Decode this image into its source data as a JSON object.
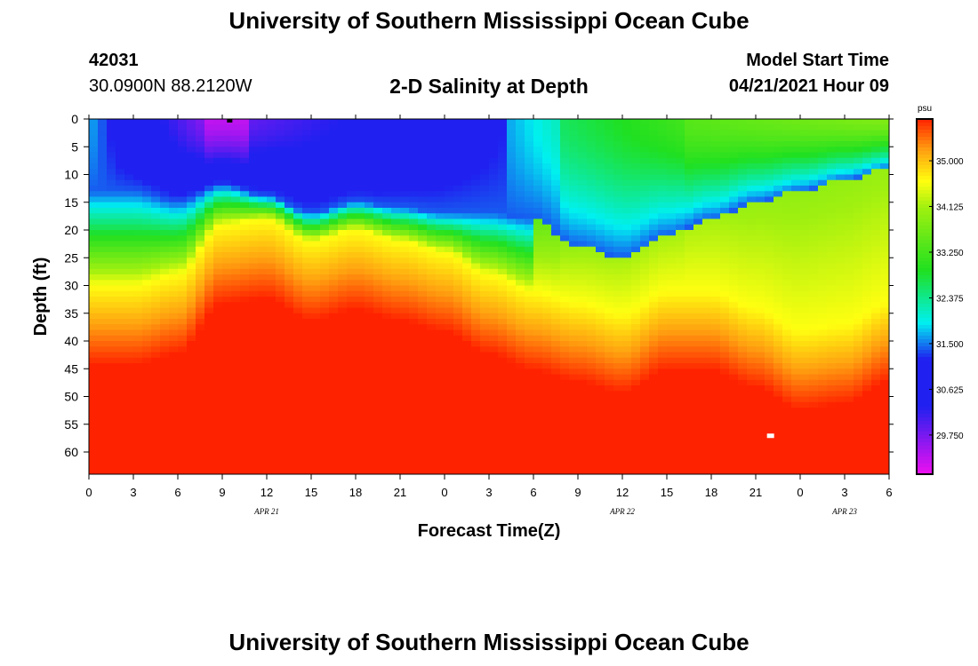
{
  "header": {
    "title": "University of Southern Mississippi Ocean Cube",
    "station_id": "42031",
    "station_coords": "30.0900N  88.2120W",
    "subtitle": "2-D Salinity at Depth",
    "model_label": "Model Start Time",
    "model_time": "04/21/2021 Hour 09"
  },
  "footer": {
    "title": "University of Southern Mississippi Ocean Cube"
  },
  "colors": {
    "low": "#ee10f0",
    "mid_blue": "#2020f0",
    "cyan": "#00f0f0",
    "green": "#20e020",
    "yellow": "#ffff10",
    "orange": "#ffa010",
    "red": "#ff2200",
    "marker_dark": "#000000",
    "marker_light": "#ffffff"
  },
  "chart_data": {
    "type": "heatmap",
    "title": "2-D Salinity at Depth",
    "xlabel": "Forecast Time(Z)",
    "ylabel": "Depth (ft)",
    "x_range_hours": [
      0,
      54
    ],
    "y_range_ft": [
      0,
      64
    ],
    "x_ticks": [
      {
        "hour": 0,
        "label": "0"
      },
      {
        "hour": 3,
        "label": "3"
      },
      {
        "hour": 6,
        "label": "6"
      },
      {
        "hour": 9,
        "label": "9"
      },
      {
        "hour": 12,
        "label": "12"
      },
      {
        "hour": 15,
        "label": "15"
      },
      {
        "hour": 18,
        "label": "18"
      },
      {
        "hour": 21,
        "label": "21"
      },
      {
        "hour": 24,
        "label": "0"
      },
      {
        "hour": 27,
        "label": "3"
      },
      {
        "hour": 30,
        "label": "6"
      },
      {
        "hour": 33,
        "label": "9"
      },
      {
        "hour": 36,
        "label": "12"
      },
      {
        "hour": 39,
        "label": "15"
      },
      {
        "hour": 42,
        "label": "18"
      },
      {
        "hour": 45,
        "label": "21"
      },
      {
        "hour": 48,
        "label": "0"
      },
      {
        "hour": 51,
        "label": "3"
      },
      {
        "hour": 54,
        "label": "6"
      }
    ],
    "date_labels": [
      {
        "hour": 12,
        "label": "APR 21"
      },
      {
        "hour": 36,
        "label": "APR 22"
      },
      {
        "hour": 51,
        "label": "APR 23"
      }
    ],
    "y_ticks": [
      0,
      5,
      10,
      15,
      20,
      25,
      30,
      35,
      40,
      45,
      50,
      55,
      60
    ],
    "colorbar": {
      "units": "psu",
      "range": [
        29.0,
        35.8
      ],
      "ticks": [
        "35.000",
        "34.125",
        "33.250",
        "32.375",
        "31.500",
        "30.625",
        "29.750"
      ],
      "tick_values": [
        35.0,
        34.125,
        33.25,
        32.375,
        31.5,
        30.625,
        29.75
      ]
    },
    "isohaline_30_9_depth_ft": [
      {
        "hour": 0,
        "depth": 13
      },
      {
        "hour": 3,
        "depth": 13
      },
      {
        "hour": 6,
        "depth": 15
      },
      {
        "hour": 9,
        "depth": 12
      },
      {
        "hour": 12,
        "depth": 14
      },
      {
        "hour": 15,
        "depth": 17
      },
      {
        "hour": 18,
        "depth": 15
      },
      {
        "hour": 21,
        "depth": 16
      },
      {
        "hour": 24,
        "depth": 17
      },
      {
        "hour": 27,
        "depth": 17
      },
      {
        "hour": 30,
        "depth": 18
      },
      {
        "hour": 33,
        "depth": 23
      },
      {
        "hour": 36,
        "depth": 25
      },
      {
        "hour": 39,
        "depth": 21
      },
      {
        "hour": 42,
        "depth": 18
      },
      {
        "hour": 45,
        "depth": 15
      },
      {
        "hour": 48,
        "depth": 13
      },
      {
        "hour": 51,
        "depth": 11
      },
      {
        "hour": 54,
        "depth": 9
      }
    ],
    "halocline_34_6_depth_ft": [
      {
        "hour": 0,
        "depth": 30
      },
      {
        "hour": 3,
        "depth": 30
      },
      {
        "hour": 6,
        "depth": 28
      },
      {
        "hour": 9,
        "depth": 19
      },
      {
        "hour": 12,
        "depth": 18
      },
      {
        "hour": 15,
        "depth": 22
      },
      {
        "hour": 18,
        "depth": 20
      },
      {
        "hour": 21,
        "depth": 22
      },
      {
        "hour": 24,
        "depth": 24
      },
      {
        "hour": 27,
        "depth": 28
      },
      {
        "hour": 30,
        "depth": 31
      },
      {
        "hour": 33,
        "depth": 33
      },
      {
        "hour": 36,
        "depth": 35
      },
      {
        "hour": 39,
        "depth": 31
      },
      {
        "hour": 42,
        "depth": 31
      },
      {
        "hour": 45,
        "depth": 34
      },
      {
        "hour": 48,
        "depth": 38
      },
      {
        "hour": 51,
        "depth": 37
      },
      {
        "hour": 54,
        "depth": 33
      }
    ],
    "min_marker": {
      "hour": 9.5,
      "depth": 0
    },
    "max_marker": {
      "hour": 46,
      "depth": 57
    }
  }
}
